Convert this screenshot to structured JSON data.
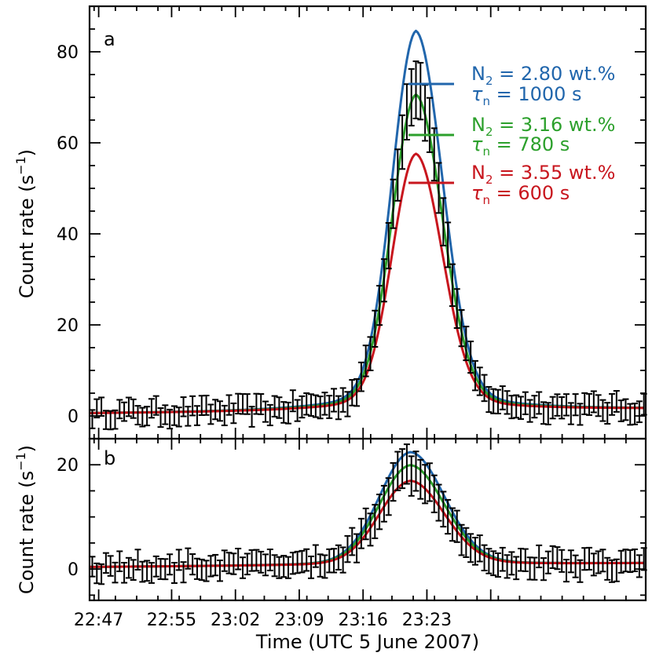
{
  "chart_data": [
    {
      "panel": "a",
      "type": "line",
      "ylabel": "Count rate (s",
      "ylabel_sup": "−1",
      "ylabel_close": ")",
      "ylim": [
        -5,
        90
      ],
      "xlim_minutes": [
        -14,
        47
      ],
      "yticks": [
        0,
        20,
        40,
        60,
        80
      ],
      "ytick_labels": [
        "0",
        "20",
        "40",
        "60",
        "80"
      ],
      "model": {
        "peak_minute": 21.8,
        "baseline": 0.6,
        "baseline_slope": 0.14,
        "sigma_left": 2.6,
        "sigma_right": 2.9,
        "wing_amp": 0.09,
        "wing_sigma": 7
      },
      "series": [
        {
          "name": "N2 = 2.80 wt.%",
          "label_main": "N",
          "label_sub": "2",
          "label_rest": " = 2.80 wt.%",
          "tau_label": "τ",
          "tau_sub": "n",
          "tau_rest": " = 1000 s",
          "peak": 84,
          "color": "#2166ac"
        },
        {
          "name": "N2 = 3.16 wt.%",
          "label_main": "N",
          "label_sub": "2",
          "label_rest": " = 3.16 wt.%",
          "tau_label": "τ",
          "tau_sub": "n",
          "tau_rest": " = 780 s",
          "peak": 70,
          "color": "#2ca02c"
        },
        {
          "name": "N2 = 3.55 wt.%",
          "label_main": "N",
          "label_sub": "2",
          "label_rest": " = 3.55 wt.%",
          "tau_label": "τ",
          "tau_sub": "n",
          "tau_rest": " = 600 s",
          "peak": 57,
          "color": "#c8161e"
        }
      ],
      "observed_peak": 72
    },
    {
      "panel": "b",
      "type": "line",
      "ylabel": "Count rate (s",
      "ylabel_sup": "−1",
      "ylabel_close": ")",
      "ylim": [
        -6,
        25
      ],
      "xlim_minutes": [
        -14,
        47
      ],
      "yticks": [
        0,
        20
      ],
      "ytick_labels": [
        "0",
        "20"
      ],
      "model": {
        "peak_minute": 21.2,
        "baseline": 0.4,
        "baseline_slope": 0.1,
        "sigma_left": 3.4,
        "sigma_right": 3.7,
        "wing_amp": 0.06,
        "wing_sigma": 8
      },
      "series": [
        {
          "name": "N2 = 2.80 wt.%",
          "peak": 22,
          "color": "#2166ac"
        },
        {
          "name": "N2 = 3.16 wt.%",
          "peak": 19.5,
          "color": "#2ca02c"
        },
        {
          "name": "N2 = 3.55 wt.%",
          "peak": 16.5,
          "color": "#c8161e"
        }
      ],
      "observed_peak": 19
    }
  ],
  "x_axis": {
    "xlabel": "Time (UTC 5 June 2007)",
    "ticks_minutes": [
      -13,
      -5,
      2,
      9,
      16,
      23,
      30
    ],
    "tick_labels": [
      "22:47",
      "22:55",
      "23:02",
      "23:09",
      "23:16",
      "23:23",
      ""
    ]
  },
  "panel_labels": {
    "a": "a",
    "b": "b"
  }
}
